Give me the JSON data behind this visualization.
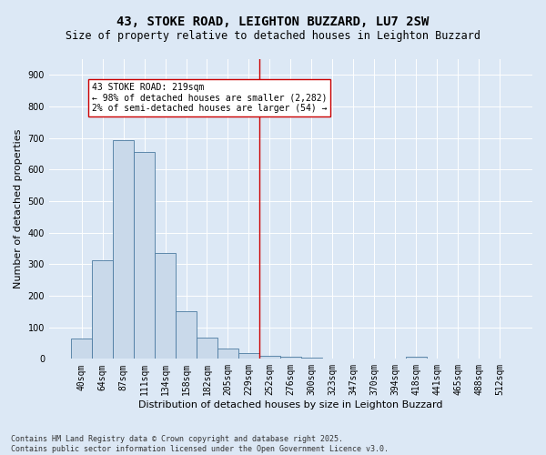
{
  "title": "43, STOKE ROAD, LEIGHTON BUZZARD, LU7 2SW",
  "subtitle": "Size of property relative to detached houses in Leighton Buzzard",
  "xlabel": "Distribution of detached houses by size in Leighton Buzzard",
  "ylabel": "Number of detached properties",
  "categories": [
    "40sqm",
    "64sqm",
    "87sqm",
    "111sqm",
    "134sqm",
    "158sqm",
    "182sqm",
    "205sqm",
    "229sqm",
    "252sqm",
    "276sqm",
    "300sqm",
    "323sqm",
    "347sqm",
    "370sqm",
    "394sqm",
    "418sqm",
    "441sqm",
    "465sqm",
    "488sqm",
    "512sqm"
  ],
  "bar_values": [
    63,
    312,
    693,
    657,
    335,
    152,
    68,
    33,
    17,
    9,
    7,
    5,
    0,
    0,
    0,
    0,
    8,
    0,
    0,
    0,
    0
  ],
  "bar_color": "#c9d9ea",
  "bar_edge_color": "#4a7aa0",
  "bg_color": "#dce8f5",
  "grid_color": "#ffffff",
  "vline_x": 8.5,
  "vline_color": "#cc0000",
  "annotation_title": "43 STOKE ROAD: 219sqm",
  "annotation_line1": "← 98% of detached houses are smaller (2,282)",
  "annotation_line2": "2% of semi-detached houses are larger (54) →",
  "annotation_box_color": "#ffffff",
  "annotation_box_edge": "#cc0000",
  "footer_line1": "Contains HM Land Registry data © Crown copyright and database right 2025.",
  "footer_line2": "Contains public sector information licensed under the Open Government Licence v3.0.",
  "ylim": [
    0,
    950
  ],
  "yticks": [
    0,
    100,
    200,
    300,
    400,
    500,
    600,
    700,
    800,
    900
  ],
  "title_fontsize": 10,
  "subtitle_fontsize": 8.5,
  "ylabel_fontsize": 8,
  "xlabel_fontsize": 8,
  "tick_fontsize": 7,
  "annot_fontsize": 7,
  "footer_fontsize": 6
}
